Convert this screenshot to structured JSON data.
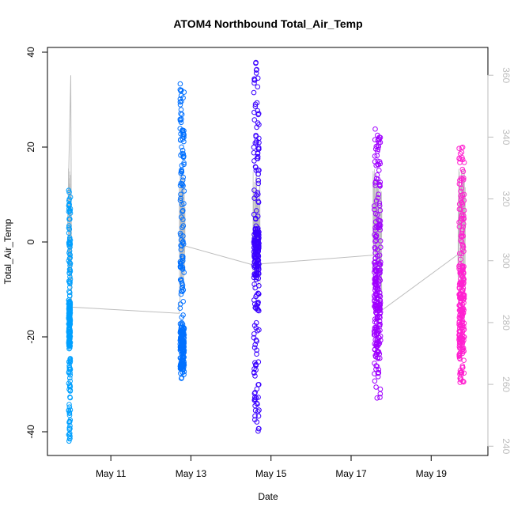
{
  "chart_data": {
    "type": "scatter",
    "title": "ATOM4 Northbound Total_Air_Temp",
    "xlabel": "Date",
    "ylabel": "Total_Air_Temp",
    "xlim": [
      "2016-05-09T10:00",
      "2016-05-20T10:00"
    ],
    "ylim": [
      -45,
      41
    ],
    "y2lim": [
      237,
      369
    ],
    "x_ticks": [
      "May 11",
      "May 13",
      "May 15",
      "May 17",
      "May 19"
    ],
    "x_tick_dates": [
      "2016-05-11",
      "2016-05-13",
      "2016-05-15",
      "2016-05-17",
      "2016-05-19"
    ],
    "y_ticks": [
      -40,
      -20,
      0,
      20,
      40
    ],
    "y2_ticks": [
      240,
      260,
      280,
      300,
      320,
      340,
      360
    ],
    "grid": false,
    "marker": "open circle",
    "series_colors": [
      "#00a0ff",
      "#0070ff",
      "#3a00ff",
      "#a000ff",
      "#ff20d0"
    ],
    "line_color": "#bdbdbd",
    "flights": [
      {
        "color": "#00a0ff",
        "date_start": "2016-05-09T22:30",
        "date_end": "2016-05-10T00:00",
        "y_min": -42,
        "y_max": 11,
        "cluster_low": -22,
        "cluster_high": -12
      },
      {
        "color": "#0070ff",
        "date_start": "2016-05-12T17:00",
        "date_end": "2016-05-12T20:30",
        "y_min": -29,
        "y_max": 34,
        "cluster_low": -27,
        "cluster_high": -18
      },
      {
        "color": "#3a00ff",
        "date_start": "2016-05-14T13:00",
        "date_end": "2016-05-14T17:30",
        "y_min": -40,
        "y_max": 38,
        "cluster_low": -8,
        "cluster_high": 3
      },
      {
        "color": "#a000ff",
        "date_start": "2016-05-17T13:00",
        "date_end": "2016-05-17T18:30",
        "y_min": -33,
        "y_max": 24,
        "cluster_low": -22,
        "cluster_high": -4
      },
      {
        "color": "#ff20d0",
        "date_start": "2016-05-19T16:00",
        "date_end": "2016-05-19T20:30",
        "y_min": -30,
        "y_max": 20,
        "cluster_low": -25,
        "cluster_high": -5
      }
    ],
    "line_data": {
      "x": [
        "2016-05-09T22:00",
        "2016-05-10T00:00",
        "2016-05-10T00:30",
        "2016-05-12T17:00",
        "2016-05-12T19:00",
        "2016-05-14T17:30",
        "2016-05-14T18:30",
        "2016-05-17T18:00",
        "2016-05-17T18:30",
        "2016-05-19T16:00",
        "2016-05-19T20:00"
      ],
      "y": [
        310,
        360,
        285,
        283,
        305,
        298,
        299,
        302,
        284,
        302,
        320
      ]
    }
  }
}
